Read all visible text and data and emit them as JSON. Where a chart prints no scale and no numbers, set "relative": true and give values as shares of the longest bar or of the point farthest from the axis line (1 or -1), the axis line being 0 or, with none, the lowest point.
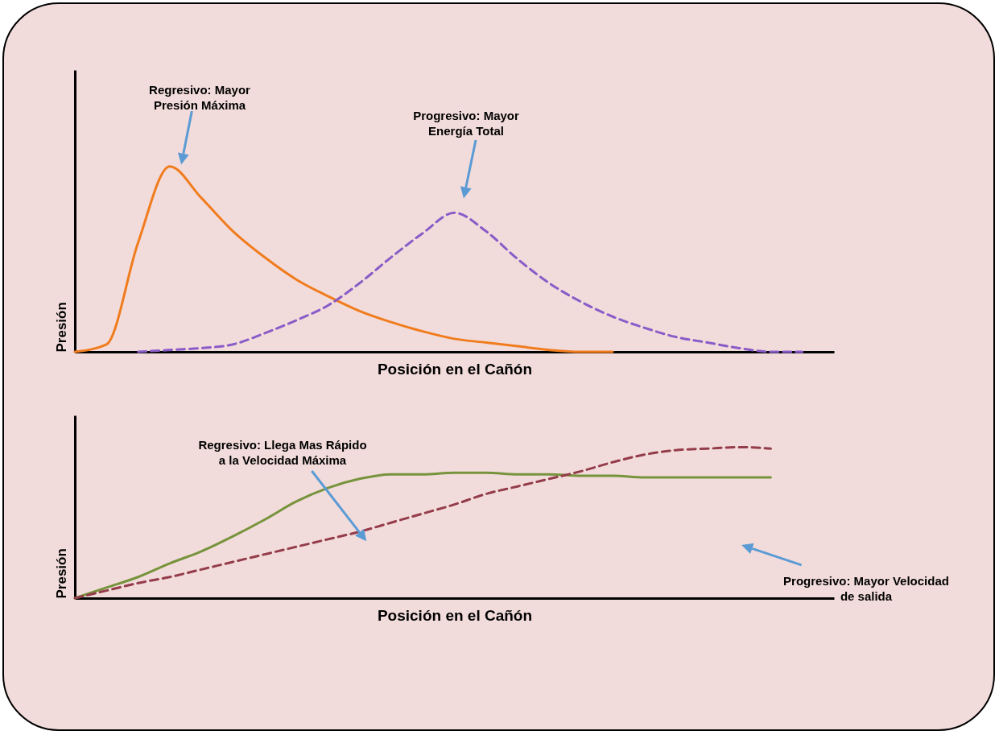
{
  "chart_data": [
    {
      "type": "line",
      "relative": true,
      "xlabel": "Posición en el Cañón",
      "ylabel": "Presión",
      "categories": [
        null,
        null,
        null,
        null,
        null,
        null,
        null,
        null,
        null,
        null,
        null,
        null,
        null,
        null,
        null,
        null,
        null,
        null,
        null,
        null,
        null,
        null,
        null,
        null,
        null
      ],
      "series": [
        {
          "color": "#f07c1e",
          "line_style": "solid",
          "values": [
            0,
            0.04,
            0.59,
            1,
            0.83,
            0.65,
            0.51,
            0.39,
            0.3,
            0.22,
            0.16,
            0.11,
            0.07,
            0.05,
            0.03,
            0.01,
            0,
            0,
            null,
            null,
            null,
            null,
            null,
            null,
            null
          ]
        },
        {
          "color": "#8a5cc8",
          "line_style": "dashed",
          "values": [
            null,
            null,
            0,
            0.01,
            0.02,
            0.04,
            0.1,
            0.17,
            0.25,
            0.37,
            0.51,
            0.64,
            0.75,
            0.65,
            0.5,
            0.37,
            0.27,
            0.19,
            0.13,
            0.08,
            0.05,
            0.02,
            0,
            0,
            null
          ]
        }
      ],
      "annotations": [
        "Regresivo: Mayor Presión Máxima",
        "Progresivo: Mayor Energía Total"
      ]
    },
    {
      "type": "line",
      "relative": true,
      "xlabel": "Posición en el Cañón",
      "ylabel": "Presión",
      "categories": [
        null,
        null,
        null,
        null,
        null,
        null,
        null,
        null,
        null,
        null,
        null,
        null,
        null,
        null,
        null,
        null,
        null,
        null,
        null,
        null,
        null,
        null,
        null,
        null,
        null
      ],
      "series": [
        {
          "color": "#77933c",
          "line_style": "solid",
          "values": [
            0,
            0.07,
            0.14,
            0.23,
            0.31,
            0.41,
            0.52,
            0.64,
            0.73,
            0.79,
            0.82,
            0.82,
            0.83,
            0.83,
            0.82,
            0.82,
            0.81,
            0.81,
            0.8,
            0.8,
            0.8,
            0.8,
            0.8,
            null,
            null
          ]
        },
        {
          "color": "#943c4a",
          "line_style": "dashed",
          "values": [
            0,
            0.05,
            0.1,
            0.14,
            0.19,
            0.24,
            0.29,
            0.34,
            0.39,
            0.44,
            0.5,
            0.56,
            0.62,
            0.69,
            0.74,
            0.79,
            0.84,
            0.9,
            0.95,
            0.98,
            0.99,
            1,
            0.99,
            null,
            null
          ]
        }
      ],
      "annotations": [
        "Regresivo: Llega Mas Rápido a la Velocidad Máxima",
        "Progresivo: Mayor Velocidad de salida"
      ]
    }
  ]
}
